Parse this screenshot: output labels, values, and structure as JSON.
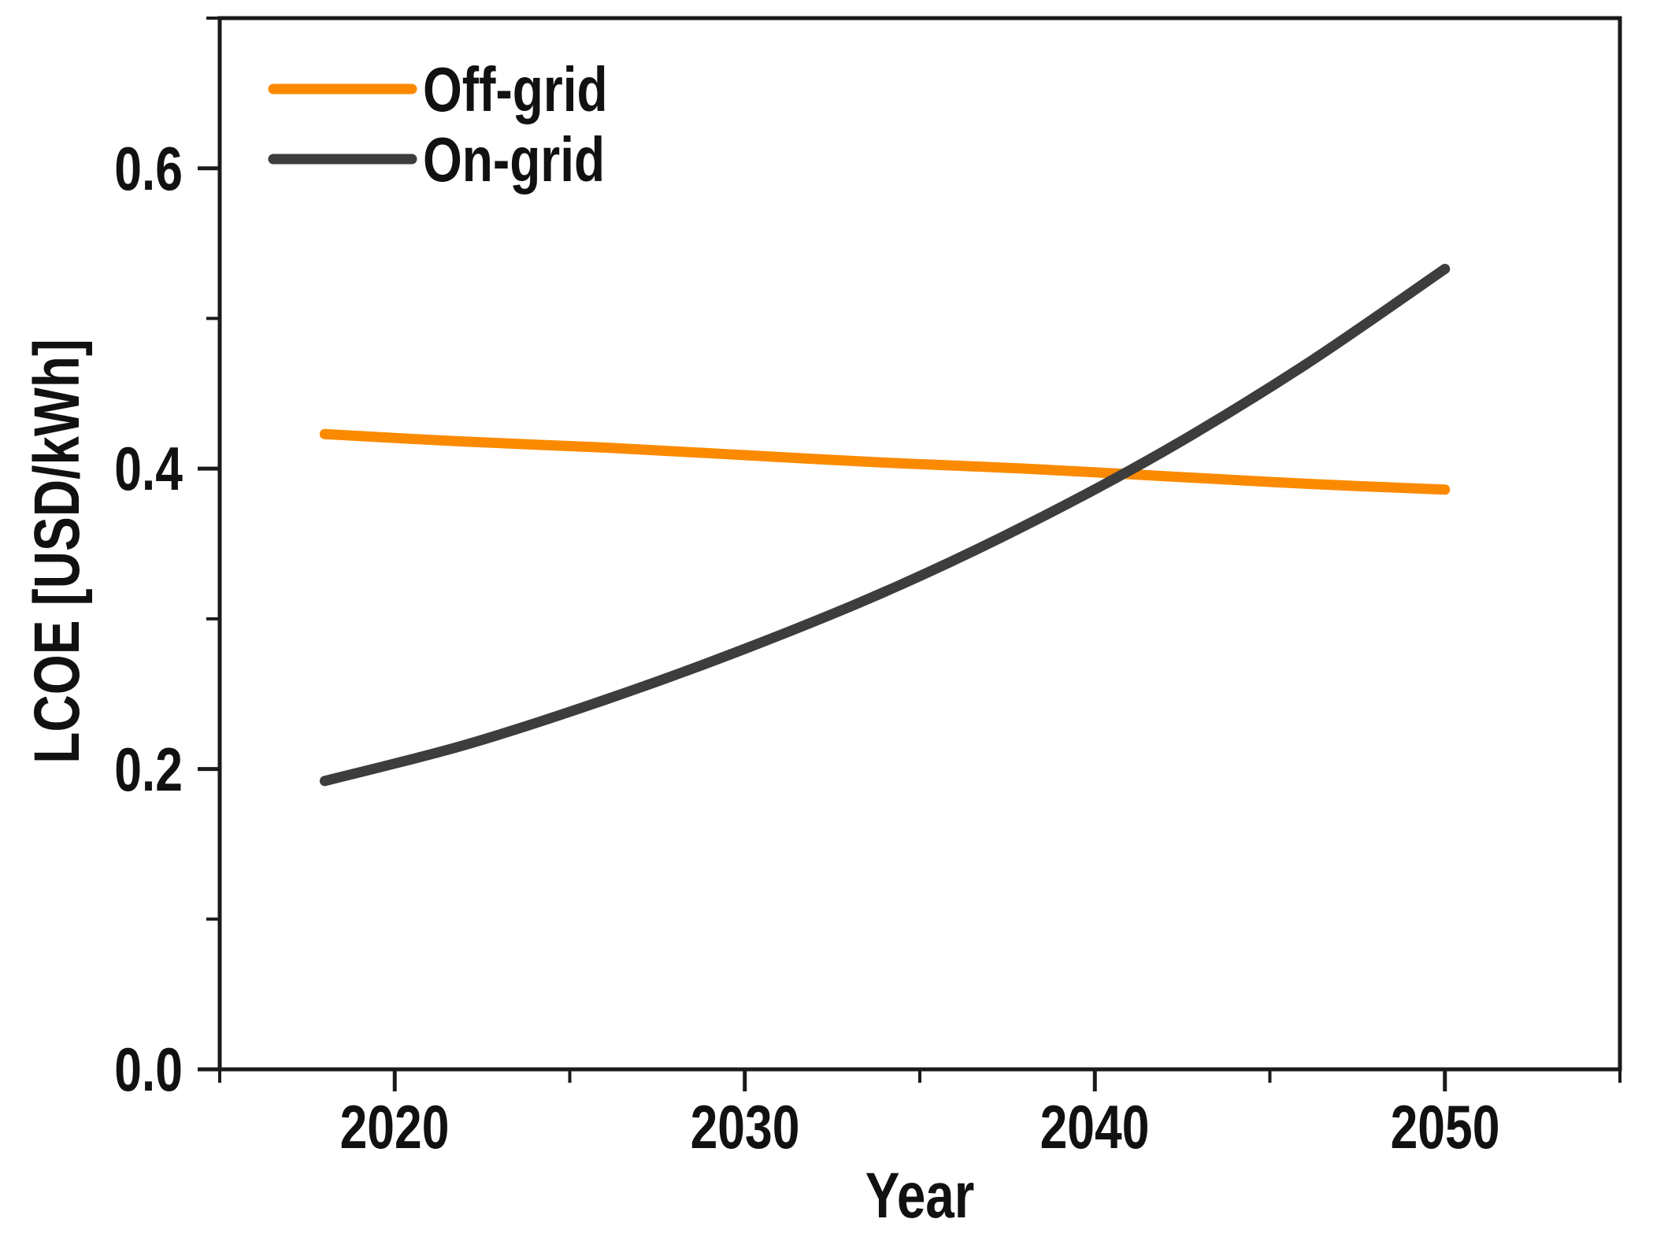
{
  "chart_data": {
    "type": "line",
    "title": "",
    "xlabel": "Year",
    "ylabel": "LCOE [USD/kWh]",
    "xlim": [
      2015,
      2055
    ],
    "ylim": [
      0.0,
      0.7
    ],
    "x_major_ticks": [
      2020,
      2030,
      2040,
      2050
    ],
    "x_tick_labels": [
      "2020",
      "2030",
      "2040",
      "2050"
    ],
    "x_minor_ticks": [
      2015,
      2025,
      2035,
      2045,
      2055
    ],
    "y_major_ticks": [
      0.0,
      0.2,
      0.4,
      0.6
    ],
    "y_tick_labels": [
      "0.0",
      "0.2",
      "0.4",
      "0.6"
    ],
    "y_minor_ticks": [
      0.1,
      0.3,
      0.5,
      0.7
    ],
    "grid": "off",
    "legend_position": "top-left",
    "axis_color": "#1A1A1A",
    "x": [
      2018,
      2022,
      2026,
      2030,
      2034,
      2038,
      2042,
      2046,
      2050
    ],
    "series": [
      {
        "name": "Off-grid",
        "color": "#FB8A00",
        "values": [
          0.423,
          0.418,
          0.414,
          0.409,
          0.404,
          0.4,
          0.395,
          0.39,
          0.386
        ]
      },
      {
        "name": "On-grid",
        "color": "#3D3D3D",
        "values": [
          0.192,
          0.216,
          0.246,
          0.28,
          0.318,
          0.362,
          0.412,
          0.469,
          0.533
        ]
      }
    ],
    "crossover": {
      "year": 2041,
      "value": 0.4
    }
  }
}
